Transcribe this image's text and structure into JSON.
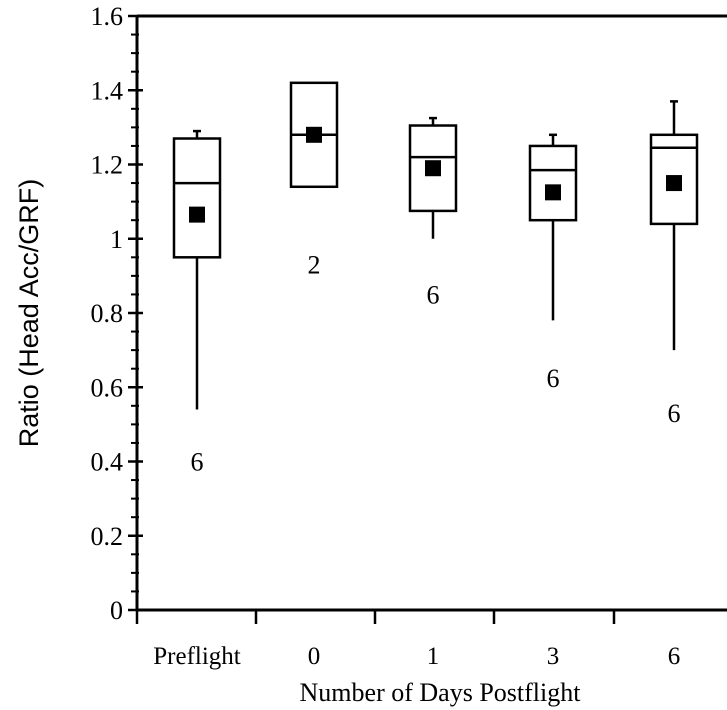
{
  "chart_data": {
    "type": "box",
    "xlabel": "Number of Days Postflight",
    "ylabel": "Ratio (Head Acc/GRF)",
    "ylim": [
      0,
      1.6
    ],
    "yticks": [
      "0",
      "0.2",
      "0.4",
      "0.6",
      "0.8",
      "1",
      "1.2",
      "1.4",
      "1.6"
    ],
    "ytick_values": [
      0,
      0.2,
      0.4,
      0.6,
      0.8,
      1,
      1.2,
      1.4,
      1.6
    ],
    "categories": [
      "Preflight",
      "0",
      "1",
      "3",
      "6"
    ],
    "boxes": [
      {
        "category": "Preflight",
        "whisker_low": 0.54,
        "q1": 0.95,
        "median": 1.15,
        "q3": 1.27,
        "whisker_high": 1.29,
        "mean": 1.065,
        "n": "6",
        "n_y": 0.4
      },
      {
        "category": "0",
        "whisker_low": null,
        "q1": 1.14,
        "median": 1.28,
        "q3": 1.42,
        "whisker_high": null,
        "mean": 1.28,
        "n": "2",
        "n_y": 0.93
      },
      {
        "category": "1",
        "whisker_low": 1.0,
        "q1": 1.075,
        "median": 1.22,
        "q3": 1.305,
        "whisker_high": 1.325,
        "mean": 1.19,
        "n": "6",
        "n_y": 0.85
      },
      {
        "category": "3",
        "whisker_low": 0.78,
        "q1": 1.05,
        "median": 1.185,
        "q3": 1.25,
        "whisker_high": 1.28,
        "mean": 1.125,
        "n": "6",
        "n_y": 0.625
      },
      {
        "category": "6",
        "whisker_low": 0.7,
        "q1": 1.04,
        "median": 1.245,
        "q3": 1.28,
        "whisker_high": 1.37,
        "mean": 1.15,
        "n": "6",
        "n_y": 0.53
      }
    ]
  }
}
